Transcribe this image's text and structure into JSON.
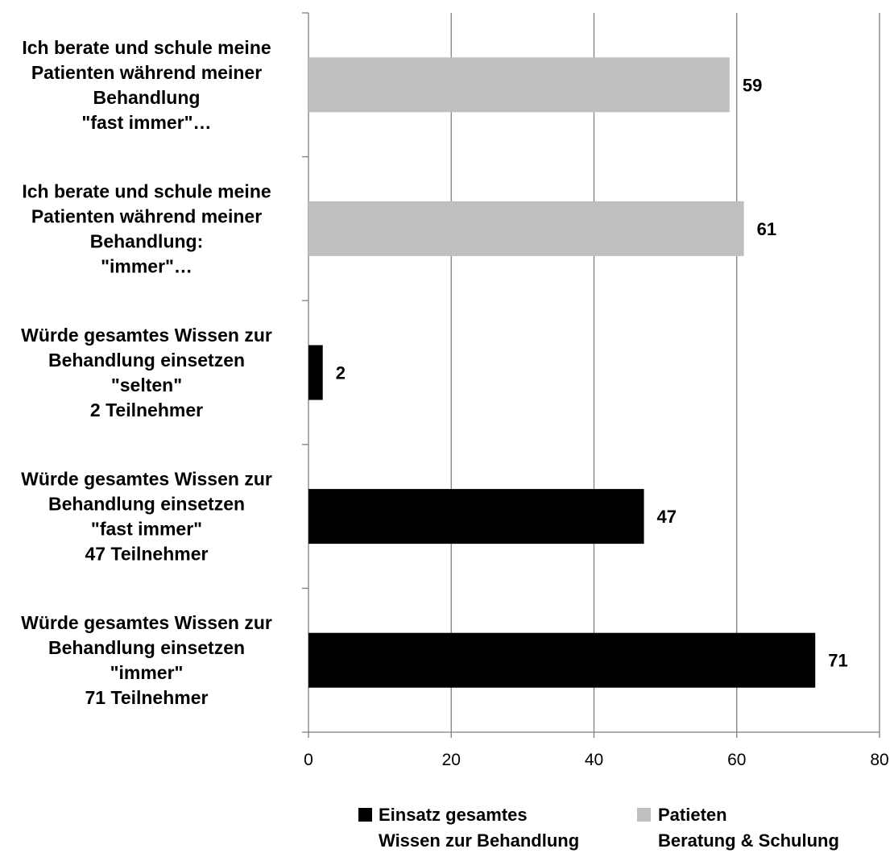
{
  "chart_data": {
    "type": "bar",
    "orientation": "horizontal",
    "title": "",
    "xlabel": "",
    "ylabel": "",
    "xlim": [
      0,
      80
    ],
    "x_ticks": [
      0,
      20,
      40,
      60,
      80
    ],
    "grid": true,
    "legend_position": "bottom",
    "categories": [
      [
        "Ich berate und schule meine",
        "Patienten während meiner",
        "Behandlung",
        "\"fast immer\"…"
      ],
      [
        "Ich berate und schule meine",
        "Patienten während meiner",
        "Behandlung:",
        "\"immer\"…"
      ],
      [
        "Würde gesamtes Wissen zur",
        "Behandlung einsetzen",
        "\"selten\"",
        "2 Teilnehmer"
      ],
      [
        "Würde gesamtes Wissen zur",
        "Behandlung einsetzen",
        "\"fast immer\"",
        "47 Teilnehmer"
      ],
      [
        "Würde gesamtes Wissen zur",
        "Behandlung einsetzen",
        "\"immer\"",
        "71 Teilnehmer"
      ]
    ],
    "values": [
      59,
      61,
      2,
      47,
      71
    ],
    "bar_series": [
      1,
      1,
      0,
      0,
      0
    ],
    "series": [
      {
        "name": [
          "Einsatz gesamtes",
          "Wissen zur Behandlung"
        ],
        "color": "#000000"
      },
      {
        "name": [
          "Patieten",
          "Beratung & Schulung"
        ],
        "color": "#bfbfbf"
      }
    ]
  }
}
